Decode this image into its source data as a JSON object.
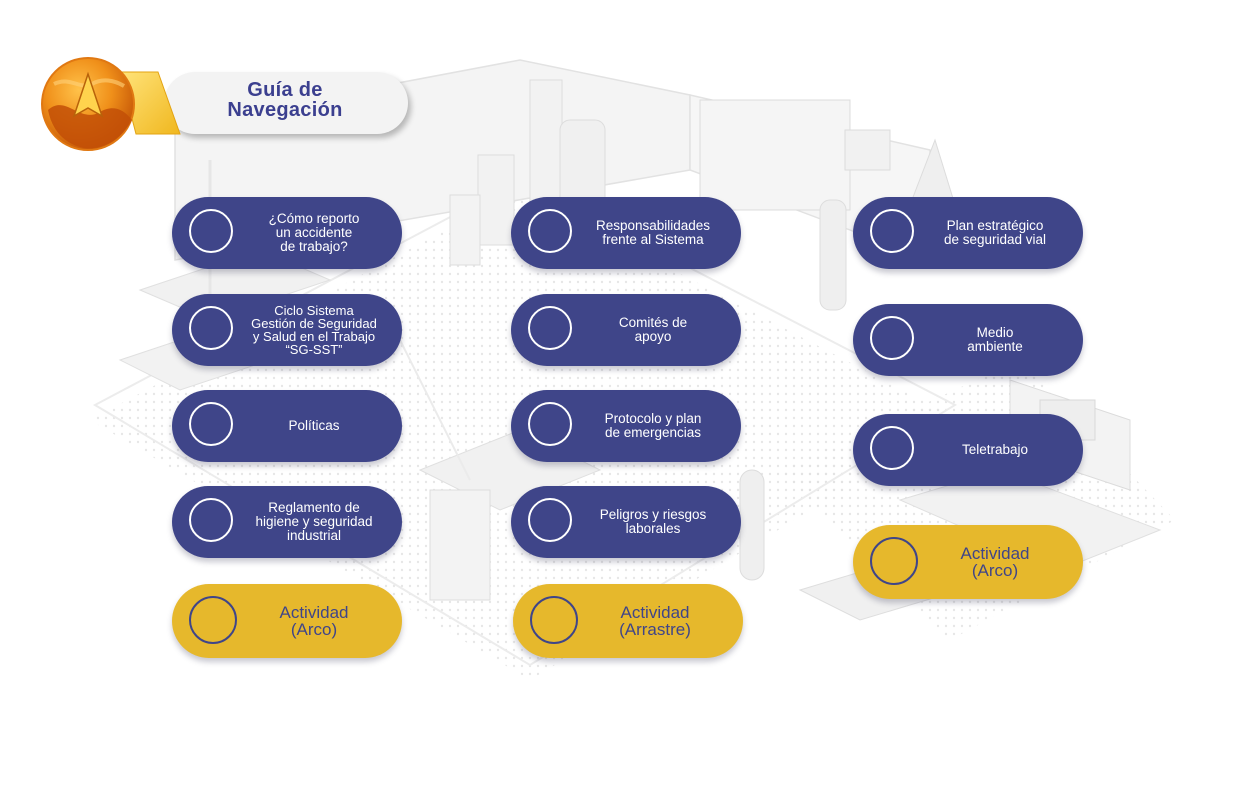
{
  "header": {
    "title": "Guía de\nNavegación",
    "icon": "compass-icon"
  },
  "columns": [
    {
      "items": [
        {
          "label": "¿Cómo reporto\nun accidente\nde trabajo?",
          "type": "topic"
        },
        {
          "label": "Ciclo Sistema\nGestión de Seguridad\ny Salud en el Trabajo\n“SG-SST”",
          "type": "topic"
        },
        {
          "label": "Políticas",
          "type": "topic"
        },
        {
          "label": "Reglamento de\nhigiene y seguridad\nindustrial",
          "type": "topic"
        },
        {
          "label": "Actividad\n(Arco)",
          "type": "activity"
        }
      ]
    },
    {
      "items": [
        {
          "label": "Responsabilidades\nfrente al Sistema",
          "type": "topic"
        },
        {
          "label": "Comités de\napoyo",
          "type": "topic"
        },
        {
          "label": "Protocolo y plan\nde emergencias",
          "type": "topic"
        },
        {
          "label": "Peligros y riesgos\nlaborales",
          "type": "topic"
        },
        {
          "label": "Actividad\n(Arrastre)",
          "type": "activity"
        }
      ]
    },
    {
      "items": [
        {
          "label": "Plan estratégico\nde seguridad vial",
          "type": "topic"
        },
        {
          "label": "Medio\nambiente",
          "type": "topic"
        },
        {
          "label": "Teletrabajo",
          "type": "topic"
        },
        {
          "label": "Actividad\n(Arco)",
          "type": "activity"
        }
      ]
    }
  ],
  "colors": {
    "topic": "#3f4589",
    "activity": "#e6b82c",
    "title": "#3b3f8f"
  }
}
